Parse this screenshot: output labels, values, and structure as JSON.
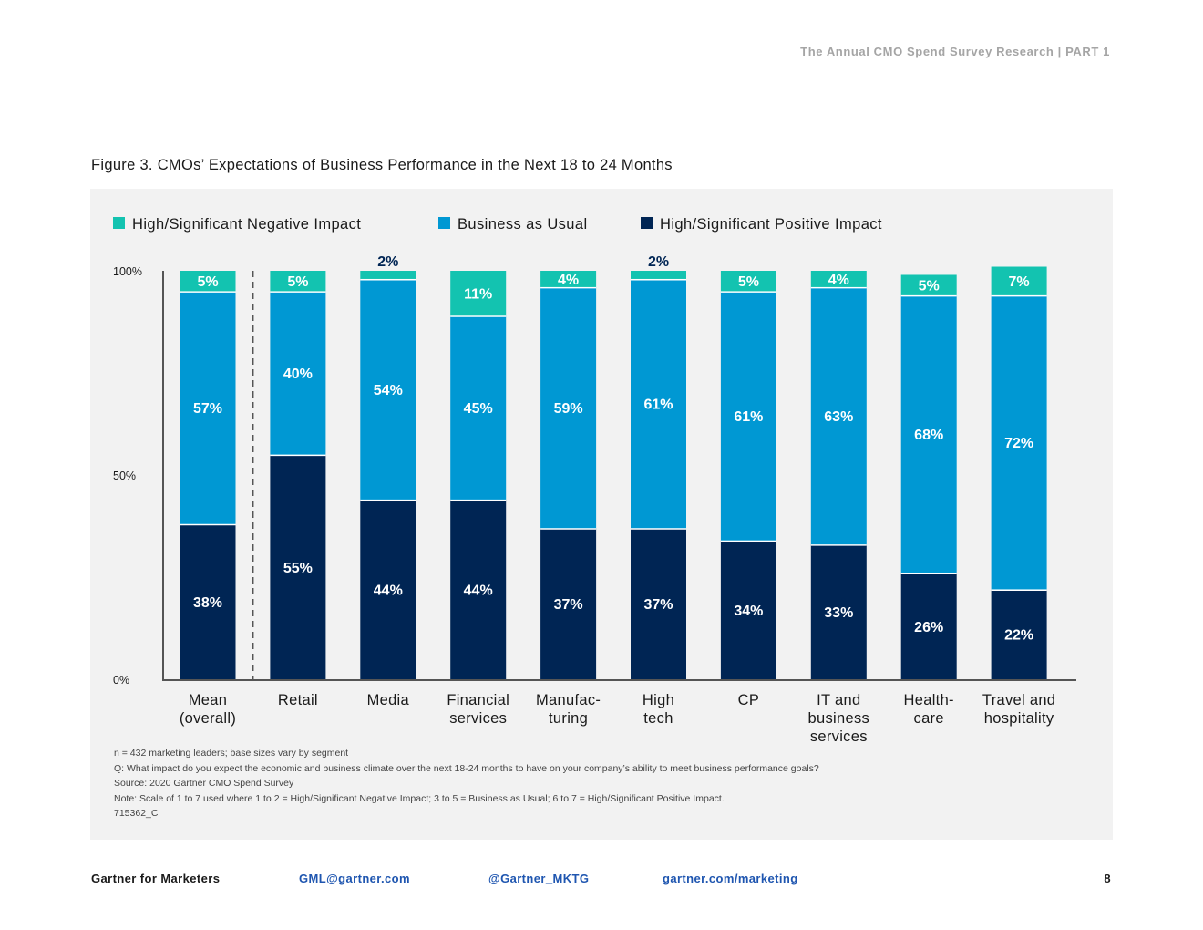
{
  "header": {
    "running_title": "The Annual CMO Spend Survey Research  |  PART 1"
  },
  "figure": {
    "title": "Figure 3. CMOs’ Expectations of Business Performance in the Next 18 to 24 Months"
  },
  "chart_data": {
    "type": "bar",
    "stacked": true,
    "title": "",
    "xlabel": "",
    "ylabel": "",
    "ylim": [
      0,
      100
    ],
    "y_ticks": [
      "0%",
      "50%",
      "100%"
    ],
    "categories": [
      [
        "Mean",
        "(overall)"
      ],
      [
        "Retail"
      ],
      [
        "Media"
      ],
      [
        "Financial",
        "services"
      ],
      [
        "Manufac-",
        "turing"
      ],
      [
        "High",
        "tech"
      ],
      [
        "CP"
      ],
      [
        "IT and",
        "business",
        "services"
      ],
      [
        "Health-",
        "care"
      ],
      [
        "Travel and",
        "hospitality"
      ]
    ],
    "series": [
      {
        "name": "High/Significant Positive Impact",
        "color": "#002554",
        "values": [
          38,
          55,
          44,
          44,
          37,
          37,
          34,
          33,
          26,
          22
        ]
      },
      {
        "name": "Business as Usual",
        "color": "#0098d3",
        "values": [
          57,
          40,
          54,
          45,
          59,
          61,
          61,
          63,
          68,
          72
        ]
      },
      {
        "name": "High/Significant Negative Impact",
        "color": "#13c3b0",
        "values": [
          5,
          5,
          2,
          11,
          4,
          2,
          5,
          4,
          5,
          7
        ]
      }
    ],
    "legend": {
      "placement": "top-left",
      "order": [
        "High/Significant Negative Impact",
        "Business as Usual",
        "High/Significant Positive Impact"
      ]
    },
    "grid": false,
    "reference_separator_after_category": 0
  },
  "notes": [
    "n = 432 marketing leaders; base sizes vary by segment",
    "Q: What impact do you expect the economic and business climate over the next 18-24 months to have on your company’s ability to meet business performance goals?",
    "Source: 2020 Gartner CMO Spend Survey",
    "Note: Scale of 1 to 7 used where 1 to 2 = High/Significant Negative Impact; 3 to 5 = Business as Usual; 6 to 7 = High/Significant Positive Impact.",
    "715362_C"
  ],
  "footer": {
    "brand": "Gartner for Marketers",
    "email": "GML@gartner.com",
    "twitter": "@Gartner_MKTG",
    "website": "gartner.com/marketing",
    "page_number": "8"
  }
}
